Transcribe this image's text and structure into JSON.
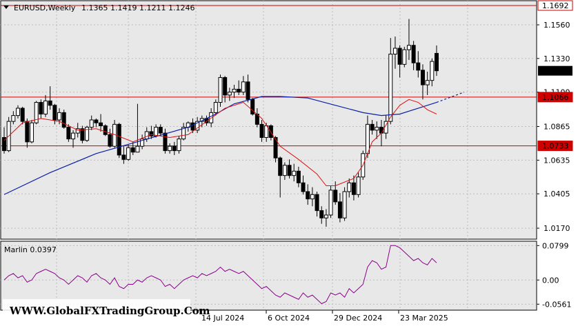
{
  "header": {
    "symbol_timeframe": "EURUSD,Weekly",
    "ohlc": "1.1365 1.1419 1.1211 1.1246"
  },
  "indicator": {
    "label": "Marlin 0.0397",
    "axis_labels": [
      "0.0799",
      "0.00",
      "-0.0561"
    ]
  },
  "watermark": "WWW.GlobalFXTradingGroup.Com",
  "colors": {
    "background": "#e8e8e8",
    "grid": "#bcbcbc",
    "bull_candle": "#ffffff",
    "bear_candle": "#000000",
    "slow_ma": "#0a1fa8",
    "fast_ma": "#e01010",
    "level_line": "#d00000",
    "oscillator": "#8b008b"
  },
  "chart_data": {
    "type": "candlestick",
    "y_axis_labels": [
      "1.1560",
      "1.1330",
      "1.1100",
      "1.0865",
      "1.0635",
      "1.0405",
      "1.0170"
    ],
    "price_ylim": [
      1.0095,
      1.1725
    ],
    "x_axis_labels": [
      "14 Jul 2024",
      "6 Oct 2024",
      "29 Dec 2024",
      "23 Mar 2025"
    ],
    "current_price": "1.1246",
    "levels": [
      {
        "label": "1.1692",
        "value": 1.1692,
        "style": "outline"
      },
      {
        "label": "1.1066",
        "value": 1.1066,
        "style": "filled"
      },
      {
        "label": "1.0733",
        "value": 1.0733,
        "style": "filled"
      }
    ],
    "candles": [
      [
        1.079,
        1.086,
        1.068,
        1.07
      ],
      [
        1.07,
        1.093,
        1.069,
        1.09
      ],
      [
        1.09,
        1.097,
        1.088,
        1.094
      ],
      [
        1.094,
        1.101,
        1.092,
        1.099
      ],
      [
        1.099,
        1.1,
        1.088,
        1.09
      ],
      [
        1.09,
        1.092,
        1.072,
        1.076
      ],
      [
        1.076,
        1.091,
        1.075,
        1.089
      ],
      [
        1.089,
        1.104,
        1.088,
        1.103
      ],
      [
        1.103,
        1.105,
        1.092,
        1.095
      ],
      [
        1.095,
        1.108,
        1.093,
        1.104
      ],
      [
        1.104,
        1.114,
        1.098,
        1.101
      ],
      [
        1.101,
        1.102,
        1.088,
        1.091
      ],
      [
        1.091,
        1.099,
        1.088,
        1.096
      ],
      [
        1.096,
        1.098,
        1.085,
        1.086
      ],
      [
        1.086,
        1.088,
        1.076,
        1.078
      ],
      [
        1.078,
        1.084,
        1.072,
        1.082
      ],
      [
        1.082,
        1.089,
        1.079,
        1.085
      ],
      [
        1.085,
        1.087,
        1.075,
        1.077
      ],
      [
        1.077,
        1.087,
        1.076,
        1.086
      ],
      [
        1.086,
        1.094,
        1.084,
        1.091
      ],
      [
        1.091,
        1.092,
        1.086,
        1.089
      ],
      [
        1.089,
        1.095,
        1.083,
        1.087
      ],
      [
        1.087,
        1.088,
        1.08,
        1.081
      ],
      [
        1.081,
        1.085,
        1.072,
        1.073
      ],
      [
        1.073,
        1.091,
        1.072,
        1.088
      ],
      [
        1.088,
        1.089,
        1.065,
        1.067
      ],
      [
        1.067,
        1.073,
        1.061,
        1.064
      ],
      [
        1.064,
        1.074,
        1.063,
        1.072
      ],
      [
        1.072,
        1.076,
        1.067,
        1.069
      ],
      [
        1.069,
        1.102,
        1.069,
        1.073
      ],
      [
        1.073,
        1.081,
        1.071,
        1.078
      ],
      [
        1.078,
        1.086,
        1.076,
        1.083
      ],
      [
        1.083,
        1.087,
        1.078,
        1.08
      ],
      [
        1.08,
        1.088,
        1.079,
        1.086
      ],
      [
        1.086,
        1.088,
        1.08,
        1.082
      ],
      [
        1.082,
        1.085,
        1.068,
        1.07
      ],
      [
        1.07,
        1.075,
        1.068,
        1.073
      ],
      [
        1.073,
        1.076,
        1.067,
        1.07
      ],
      [
        1.07,
        1.08,
        1.068,
        1.078
      ],
      [
        1.078,
        1.089,
        1.077,
        1.086
      ],
      [
        1.086,
        1.09,
        1.083,
        1.089
      ],
      [
        1.089,
        1.092,
        1.082,
        1.084
      ],
      [
        1.084,
        1.093,
        1.082,
        1.09
      ],
      [
        1.09,
        1.094,
        1.086,
        1.092
      ],
      [
        1.092,
        1.094,
        1.087,
        1.089
      ],
      [
        1.089,
        1.099,
        1.086,
        1.096
      ],
      [
        1.096,
        1.105,
        1.094,
        1.103
      ],
      [
        1.103,
        1.122,
        1.1,
        1.12
      ],
      [
        1.12,
        1.121,
        1.103,
        1.108
      ],
      [
        1.108,
        1.113,
        1.104,
        1.11
      ],
      [
        1.11,
        1.115,
        1.106,
        1.112
      ],
      [
        1.112,
        1.118,
        1.108,
        1.11
      ],
      [
        1.11,
        1.121,
        1.108,
        1.117
      ],
      [
        1.117,
        1.122,
        1.103,
        1.105
      ],
      [
        1.105,
        1.106,
        1.094,
        1.095
      ],
      [
        1.095,
        1.099,
        1.086,
        1.088
      ],
      [
        1.088,
        1.091,
        1.076,
        1.079
      ],
      [
        1.079,
        1.089,
        1.076,
        1.087
      ],
      [
        1.087,
        1.088,
        1.077,
        1.079
      ],
      [
        1.079,
        1.08,
        1.062,
        1.065
      ],
      [
        1.065,
        1.066,
        1.038,
        1.053
      ],
      [
        1.053,
        1.062,
        1.05,
        1.06
      ],
      [
        1.06,
        1.064,
        1.051,
        1.053
      ],
      [
        1.053,
        1.061,
        1.049,
        1.056
      ],
      [
        1.056,
        1.059,
        1.045,
        1.048
      ],
      [
        1.048,
        1.053,
        1.04,
        1.042
      ],
      [
        1.042,
        1.047,
        1.033,
        1.037
      ],
      [
        1.037,
        1.045,
        1.032,
        1.04
      ],
      [
        1.04,
        1.042,
        1.025,
        1.029
      ],
      [
        1.029,
        1.032,
        1.02,
        1.024
      ],
      [
        1.024,
        1.03,
        1.018,
        1.026
      ],
      [
        1.026,
        1.046,
        1.024,
        1.043
      ],
      [
        1.043,
        1.049,
        1.033,
        1.035
      ],
      [
        1.035,
        1.041,
        1.021,
        1.024
      ],
      [
        1.024,
        1.045,
        1.022,
        1.042
      ],
      [
        1.042,
        1.051,
        1.038,
        1.048
      ],
      [
        1.048,
        1.053,
        1.036,
        1.04
      ],
      [
        1.04,
        1.055,
        1.038,
        1.052
      ],
      [
        1.052,
        1.07,
        1.05,
        1.068
      ],
      [
        1.068,
        1.094,
        1.065,
        1.088
      ],
      [
        1.088,
        1.091,
        1.081,
        1.084
      ],
      [
        1.084,
        1.09,
        1.078,
        1.086
      ],
      [
        1.086,
        1.091,
        1.073,
        1.082
      ],
      [
        1.082,
        1.094,
        1.078,
        1.09
      ],
      [
        1.09,
        1.147,
        1.088,
        1.136
      ],
      [
        1.136,
        1.148,
        1.126,
        1.14
      ],
      [
        1.14,
        1.142,
        1.12,
        1.129
      ],
      [
        1.129,
        1.141,
        1.127,
        1.139
      ],
      [
        1.139,
        1.16,
        1.132,
        1.142
      ],
      [
        1.142,
        1.145,
        1.125,
        1.13
      ],
      [
        1.13,
        1.138,
        1.12,
        1.125
      ],
      [
        1.125,
        1.129,
        1.105,
        1.115
      ],
      [
        1.115,
        1.124,
        1.108,
        1.118
      ],
      [
        1.118,
        1.133,
        1.114,
        1.131
      ],
      [
        1.1365,
        1.1419,
        1.1211,
        1.1246
      ]
    ],
    "fast_ma": {
      "name": "",
      "points": [
        [
          0,
          1.077
        ],
        [
          4,
          1.089
        ],
        [
          8,
          1.092
        ],
        [
          12,
          1.09
        ],
        [
          16,
          1.084
        ],
        [
          20,
          1.085
        ],
        [
          24,
          1.081
        ],
        [
          28,
          1.076
        ],
        [
          32,
          1.081
        ],
        [
          36,
          1.079
        ],
        [
          40,
          1.081
        ],
        [
          44,
          1.09
        ],
        [
          48,
          1.099
        ],
        [
          52,
          1.103
        ],
        [
          56,
          1.092
        ],
        [
          60,
          1.073
        ],
        [
          64,
          1.064
        ],
        [
          68,
          1.054
        ],
        [
          70,
          1.046
        ],
        [
          72,
          1.046
        ],
        [
          76,
          1.051
        ],
        [
          78,
          1.06
        ],
        [
          80,
          1.076
        ],
        [
          82,
          1.082
        ],
        [
          84,
          1.093
        ],
        [
          86,
          1.101
        ],
        [
          88,
          1.105
        ],
        [
          90,
          1.103
        ],
        [
          92,
          1.098
        ],
        [
          94,
          1.095
        ]
      ]
    },
    "slow_ma": {
      "name": "",
      "points": [
        [
          0,
          1.04
        ],
        [
          10,
          1.055
        ],
        [
          20,
          1.068
        ],
        [
          30,
          1.077
        ],
        [
          40,
          1.086
        ],
        [
          46,
          1.095
        ],
        [
          50,
          1.102
        ],
        [
          56,
          1.107
        ],
        [
          60,
          1.107
        ],
        [
          66,
          1.106
        ],
        [
          72,
          1.101
        ],
        [
          78,
          1.096
        ],
        [
          82,
          1.094
        ],
        [
          86,
          1.095
        ],
        [
          90,
          1.099
        ],
        [
          94,
          1.103
        ]
      ],
      "projection": [
        [
          94,
          1.103
        ],
        [
          100,
          1.11
        ]
      ]
    },
    "oscillator": {
      "name": "Marlin",
      "ylim": [
        -0.07,
        0.09
      ],
      "values": [
        0.0,
        0.01,
        0.015,
        0.005,
        0.01,
        -0.005,
        0.0,
        0.015,
        0.02,
        0.025,
        0.02,
        0.015,
        0.005,
        0.0,
        -0.01,
        0.0,
        0.01,
        0.005,
        -0.005,
        0.01,
        0.015,
        0.005,
        0.0,
        -0.01,
        0.005,
        -0.015,
        -0.02,
        -0.01,
        -0.01,
        0.0,
        -0.005,
        0.005,
        0.01,
        0.005,
        0.0,
        -0.015,
        -0.01,
        -0.02,
        -0.01,
        0.0,
        0.005,
        0.01,
        0.005,
        0.015,
        0.01,
        0.015,
        0.02,
        0.03,
        0.02,
        0.025,
        0.02,
        0.015,
        0.02,
        0.01,
        0.0,
        -0.01,
        -0.02,
        -0.015,
        -0.025,
        -0.035,
        -0.04,
        -0.03,
        -0.035,
        -0.04,
        -0.045,
        -0.03,
        -0.04,
        -0.035,
        -0.045,
        -0.055,
        -0.05,
        -0.03,
        -0.035,
        -0.03,
        -0.04,
        -0.02,
        -0.03,
        -0.02,
        -0.01,
        0.03,
        0.045,
        0.04,
        0.025,
        0.03,
        0.08,
        0.08,
        0.075,
        0.065,
        0.055,
        0.045,
        0.05,
        0.04,
        0.035,
        0.05,
        0.04
      ]
    }
  }
}
